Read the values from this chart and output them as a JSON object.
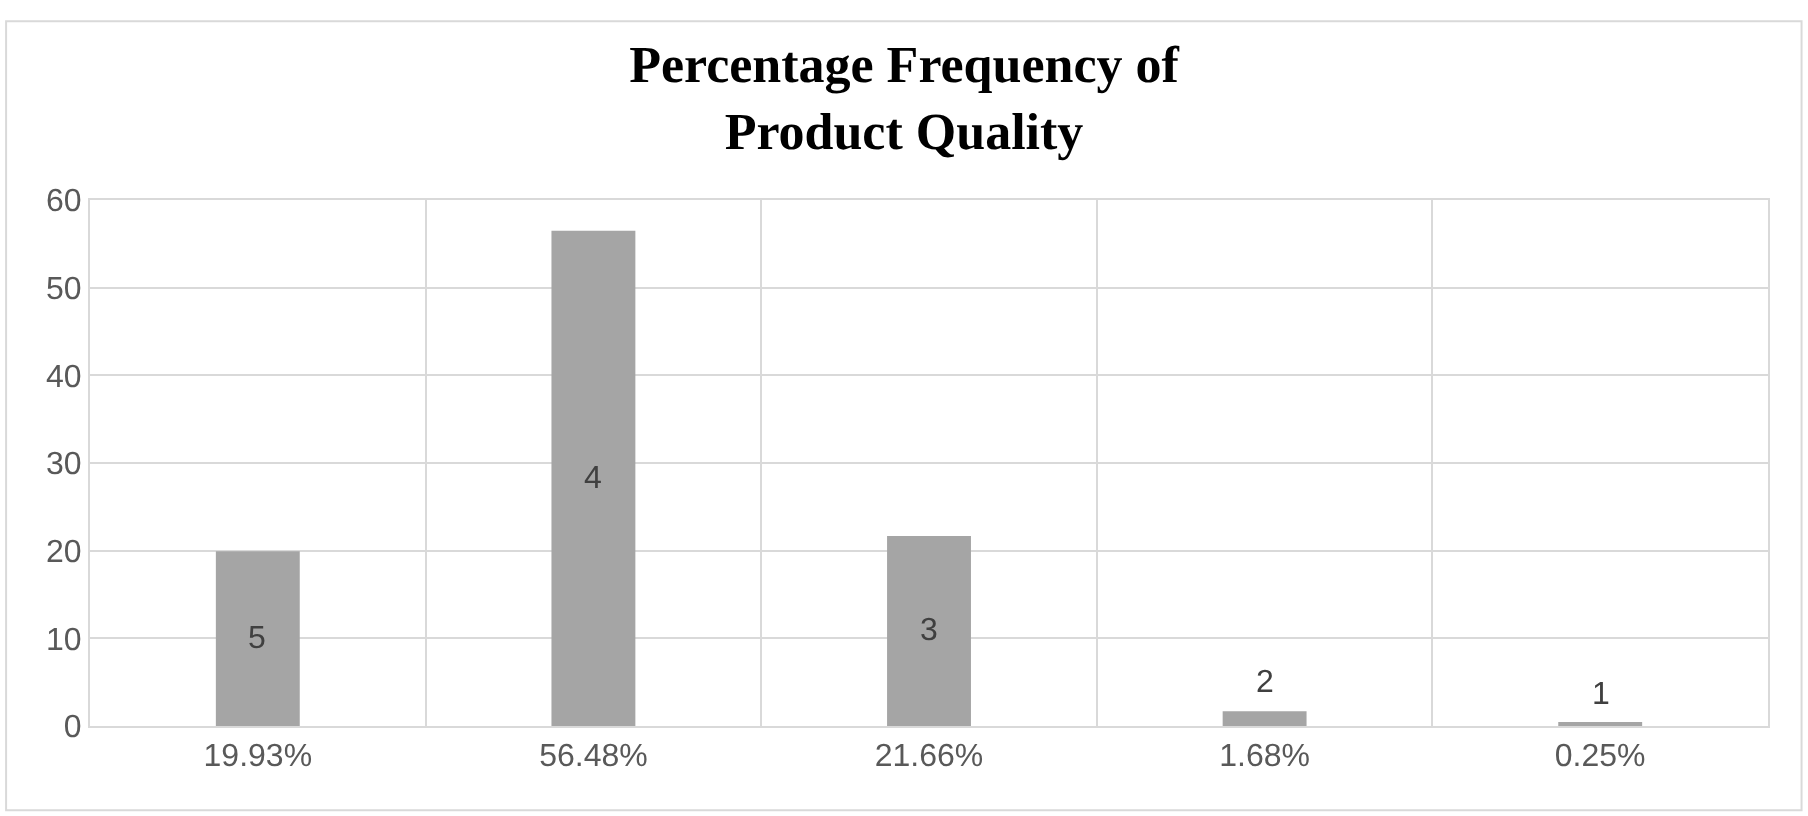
{
  "chart_data": {
    "type": "bar",
    "title": "Percentage Frequency of\nProduct Quality",
    "categories": [
      "19.93%",
      "56.48%",
      "21.66%",
      "1.68%",
      "0.25%"
    ],
    "values": [
      19.93,
      56.48,
      21.66,
      1.68,
      0.25
    ],
    "annotations": [
      "5",
      "4",
      "3",
      "2",
      "1"
    ],
    "color": "#a5a5a5",
    "ylim": [
      0,
      60
    ],
    "yticks": [
      0,
      10,
      20,
      30,
      40,
      50,
      60
    ],
    "grid": true,
    "legend": false
  }
}
